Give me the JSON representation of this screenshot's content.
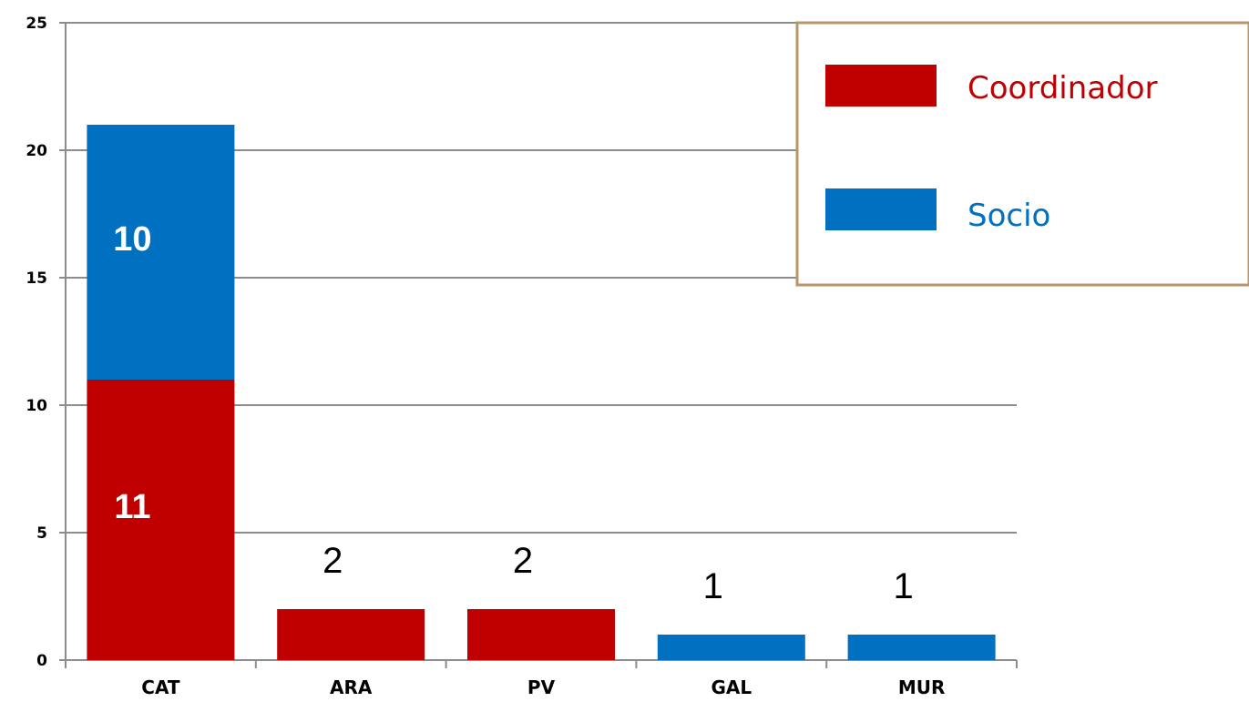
{
  "chart_data": {
    "type": "bar",
    "stacked": true,
    "categories": [
      "CAT",
      "ARA",
      "PV",
      "GAL",
      "MUR"
    ],
    "series": [
      {
        "name": "Coordinador",
        "color": "#c00000",
        "values": [
          11,
          2,
          2,
          0,
          0
        ]
      },
      {
        "name": "Socio",
        "color": "#0070c0",
        "values": [
          10,
          0,
          0,
          1,
          1
        ]
      }
    ],
    "data_labels": [
      {
        "category": "CAT",
        "series": "Coordinador",
        "text": "11",
        "placement": "inside"
      },
      {
        "category": "CAT",
        "series": "Socio",
        "text": "10",
        "placement": "inside"
      },
      {
        "category": "ARA",
        "series": "Coordinador",
        "text": "2",
        "placement": "above"
      },
      {
        "category": "PV",
        "series": "Coordinador",
        "text": "2",
        "placement": "above"
      },
      {
        "category": "GAL",
        "series": "Socio",
        "text": "1",
        "placement": "above"
      },
      {
        "category": "MUR",
        "series": "Socio",
        "text": "1",
        "placement": "above"
      }
    ],
    "yticks": [
      "0",
      "5",
      "10",
      "15",
      "20",
      "25"
    ],
    "ylim": [
      0,
      25
    ],
    "title": "",
    "xlabel": "",
    "ylabel": "",
    "grid": true,
    "legend": {
      "placement": "top-right",
      "items": [
        "Coordinador",
        "Socio"
      ],
      "border_color": "#b8956a"
    }
  }
}
